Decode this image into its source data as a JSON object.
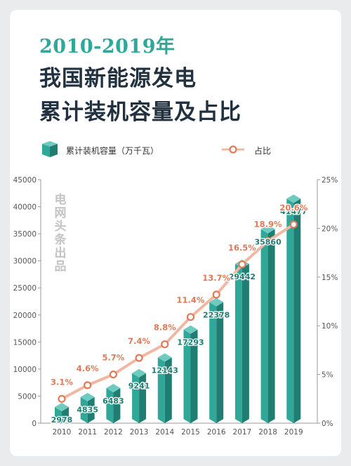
{
  "header": {
    "year_range": "2010-2019年",
    "title_line1": "我国新能源发电",
    "title_line2": "累计装机容量及占比"
  },
  "legend": {
    "bar_label": "累计装机容量（万千瓦）",
    "line_label": "占比"
  },
  "watermark": "电网头条出品",
  "colors": {
    "bar_front": "#2fa89a",
    "bar_side": "#1f7d72",
    "bar_top": "#6fcabf",
    "line": "#f0b8a2",
    "line_marker": "#e07a58",
    "pct_label": "#e07a58",
    "value_label": "#1f7d72"
  },
  "chart_data": {
    "type": "bar",
    "categories": [
      "2010",
      "2011",
      "2012",
      "2013",
      "2014",
      "2015",
      "2016",
      "2017",
      "2018",
      "2019"
    ],
    "series": [
      {
        "name": "累计装机容量（万千瓦）",
        "type": "bar",
        "values": [
          2978,
          4835,
          6483,
          9241,
          12143,
          17293,
          22378,
          29442,
          35860,
          41477
        ],
        "labels": [
          "2978",
          "4835",
          "6483",
          "9241",
          "12143",
          "17293",
          "22378",
          "29442",
          "35860",
          "41477"
        ],
        "axis": "left"
      },
      {
        "name": "占比",
        "type": "line",
        "values": [
          3.1,
          4.6,
          5.7,
          7.4,
          8.8,
          11.4,
          13.7,
          16.5,
          18.9,
          20.6
        ],
        "plot_values": [
          2.5,
          3.9,
          5.0,
          6.7,
          8.1,
          10.9,
          13.2,
          16.3,
          18.7,
          20.4
        ],
        "labels": [
          "3.1%",
          "4.6%",
          "5.7%",
          "7.4%",
          "8.8%",
          "11.4%",
          "13.7%",
          "16.5%",
          "18.9%",
          "20.6%"
        ],
        "axis": "right"
      }
    ],
    "y_left": {
      "min": 0,
      "max": 45000,
      "ticks": [
        "0",
        "5000",
        "10000",
        "15000",
        "20000",
        "25000",
        "30000",
        "35000",
        "40000",
        "45000"
      ]
    },
    "y_right": {
      "min": 0,
      "max": 25,
      "ticks": [
        "0%",
        "5%",
        "10%",
        "15%",
        "20%",
        "25%"
      ]
    },
    "grid": false
  }
}
